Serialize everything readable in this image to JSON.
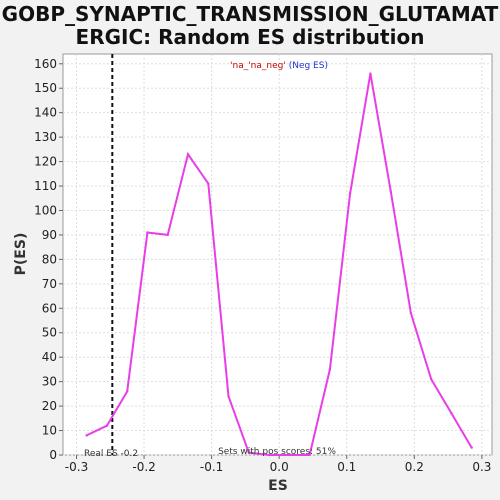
{
  "chart_data": {
    "type": "line",
    "title_lines": [
      "GOBP_SYNAPTIC_TRANSMISSION_GLUTAMAT",
      "ERGIC: Random ES distribution"
    ],
    "xlabel": "ES",
    "ylabel": "P(ES)",
    "xlim": [
      -0.32,
      0.315
    ],
    "ylim": [
      0,
      164
    ],
    "xticks": [
      "-0.3",
      "-0.2",
      "-0.1",
      "0.0",
      "0.1",
      "0.2",
      "0.3"
    ],
    "xtick_values": [
      -0.3,
      -0.2,
      -0.1,
      0.0,
      0.1,
      0.2,
      0.3
    ],
    "yticks": [
      "0",
      "10",
      "20",
      "30",
      "40",
      "50",
      "60",
      "70",
      "80",
      "90",
      "100",
      "110",
      "120",
      "130",
      "140",
      "150",
      "160"
    ],
    "ytick_values": [
      0,
      10,
      20,
      30,
      40,
      50,
      60,
      70,
      80,
      90,
      100,
      110,
      120,
      130,
      140,
      150,
      160
    ],
    "grid": true,
    "series": [
      {
        "x": [
          -0.285,
          -0.255,
          -0.225,
          -0.195,
          -0.165,
          -0.135,
          -0.105,
          -0.075,
          -0.045,
          -0.015,
          0.015,
          0.045,
          0.075,
          0.105,
          0.135,
          0.165,
          0.195,
          0.225,
          0.255,
          0.285
        ],
        "values": [
          8,
          12,
          26,
          91,
          90,
          123,
          111,
          24,
          1,
          0,
          0,
          0,
          35,
          107,
          156,
          108,
          58,
          31,
          17,
          3
        ],
        "color": "#e83ee8"
      }
    ],
    "reference_line": {
      "x": -0.247,
      "label": "Real ES -0.2",
      "color": "#111111"
    },
    "legend_text": "'na_'na_neg' (Neg ES)",
    "legend_color_1": "#cc0000",
    "legend_color_2": "#2233cc",
    "footer_text": "Sets with pos scores: 51%"
  }
}
